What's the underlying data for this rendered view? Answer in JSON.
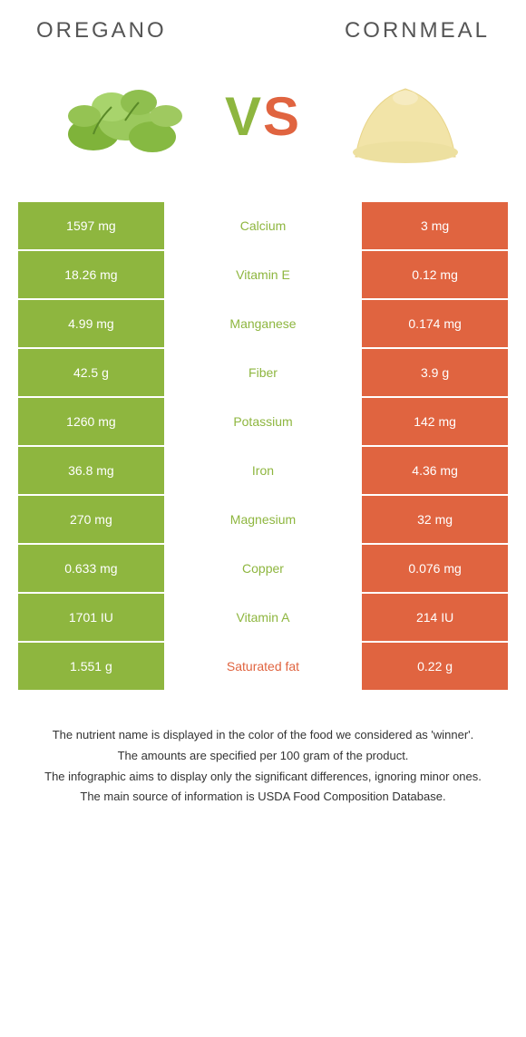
{
  "foods": {
    "left": {
      "name": "Oregano",
      "color": "#8eb63f"
    },
    "right": {
      "name": "Cornmeal",
      "color": "#e06440"
    }
  },
  "vs": {
    "v": "V",
    "s": "S"
  },
  "rows": [
    {
      "left": "1597 mg",
      "nutrient": "Calcium",
      "right": "3 mg",
      "winner": "left"
    },
    {
      "left": "18.26 mg",
      "nutrient": "Vitamin E",
      "right": "0.12 mg",
      "winner": "left"
    },
    {
      "left": "4.99 mg",
      "nutrient": "Manganese",
      "right": "0.174 mg",
      "winner": "left"
    },
    {
      "left": "42.5 g",
      "nutrient": "Fiber",
      "right": "3.9 g",
      "winner": "left"
    },
    {
      "left": "1260 mg",
      "nutrient": "Potassium",
      "right": "142 mg",
      "winner": "left"
    },
    {
      "left": "36.8 mg",
      "nutrient": "Iron",
      "right": "4.36 mg",
      "winner": "left"
    },
    {
      "left": "270 mg",
      "nutrient": "Magnesium",
      "right": "32 mg",
      "winner": "left"
    },
    {
      "left": "0.633 mg",
      "nutrient": "Copper",
      "right": "0.076 mg",
      "winner": "left"
    },
    {
      "left": "1701 IU",
      "nutrient": "Vitamin A",
      "right": "214 IU",
      "winner": "left"
    },
    {
      "left": "1.551 g",
      "nutrient": "Saturated fat",
      "right": "0.22 g",
      "winner": "right"
    }
  ],
  "footnotes": [
    "The nutrient name is displayed in the color of the food we considered as 'winner'.",
    "The amounts are specified per 100 gram of the product.",
    "The infographic aims to display only the significant differences, ignoring minor ones.",
    "The main source of information is USDA Food Composition Database."
  ],
  "colors": {
    "left_bg": "#8eb63f",
    "right_bg": "#e06440",
    "left_text": "#8eb63f",
    "right_text": "#e06440"
  }
}
